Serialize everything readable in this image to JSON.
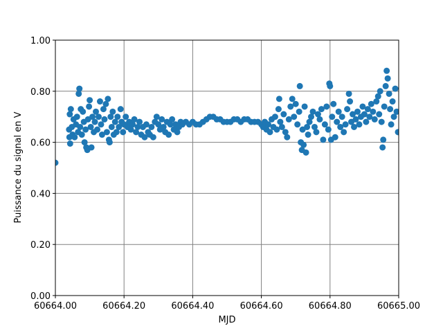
{
  "chart_data": {
    "type": "scatter",
    "x_label": "MJD",
    "y_label": "Puissance du signal en V",
    "color": "#1f77b4",
    "grid": true,
    "xlim": [
      60664.0,
      60665.0
    ],
    "xticks": [
      {
        "value": 60664.0,
        "label": "60664.00"
      },
      {
        "value": 60664.2,
        "label": "60664.20"
      },
      {
        "value": 60664.4,
        "label": "60664.40"
      },
      {
        "value": 60664.6,
        "label": "60664.60"
      },
      {
        "value": 60664.8,
        "label": "60664.80"
      },
      {
        "value": 60665.0,
        "label": "60665.00"
      }
    ],
    "ylim": [
      0,
      1
    ],
    "yticks": [
      {
        "value": 0,
        "label": "0.00"
      },
      {
        "value": 0.2,
        "label": "0.20"
      },
      {
        "value": 0.4,
        "label": "0.40"
      },
      {
        "value": 0.6,
        "label": "0.60"
      },
      {
        "value": 0.8,
        "label": "0.80"
      },
      {
        "value": 1,
        "label": "1.00"
      }
    ],
    "x": [
      60664.0,
      60664.04,
      60664.041,
      60664.042,
      60664.043,
      60664.045,
      60664.048,
      60664.05,
      60664.053,
      60664.056,
      60664.06,
      60664.063,
      60664.066,
      60664.068,
      60664.07,
      60664.072,
      60664.074,
      60664.077,
      60664.08,
      60664.083,
      60664.085,
      60664.088,
      60664.09,
      60664.093,
      60664.095,
      60664.098,
      60664.1,
      60664.103,
      60664.105,
      60664.108,
      60664.112,
      60664.115,
      60664.118,
      60664.122,
      60664.126,
      60664.13,
      60664.133,
      60664.136,
      60664.14,
      60664.143,
      60664.147,
      60664.15,
      60664.153,
      60664.156,
      60664.158,
      60664.161,
      60664.164,
      60664.167,
      60664.17,
      60664.174,
      60664.178,
      60664.181,
      60664.185,
      60664.19,
      60664.193,
      60664.197,
      60664.2,
      60664.205,
      60664.21,
      60664.215,
      60664.22,
      60664.225,
      60664.23,
      60664.235,
      60664.24,
      60664.245,
      60664.25,
      60664.255,
      60664.26,
      60664.265,
      60664.27,
      60664.275,
      60664.28,
      60664.285,
      60664.29,
      60664.295,
      60664.3,
      60664.305,
      60664.31,
      60664.315,
      60664.32,
      60664.325,
      60664.33,
      60664.335,
      60664.34,
      60664.345,
      60664.35,
      60664.355,
      60664.36,
      60664.365,
      60664.37,
      60664.38,
      60664.39,
      60664.4,
      60664.41,
      60664.42,
      60664.43,
      60664.44,
      60664.45,
      60664.46,
      60664.47,
      60664.48,
      60664.49,
      60664.5,
      60664.51,
      60664.52,
      60664.53,
      60664.54,
      60664.55,
      60664.56,
      60664.57,
      60664.58,
      60664.59,
      60664.6,
      60664.605,
      60664.61,
      60664.615,
      60664.62,
      60664.625,
      60664.63,
      60664.635,
      60664.64,
      60664.645,
      60664.65,
      60664.652,
      60664.655,
      60664.66,
      60664.665,
      60664.67,
      60664.675,
      60664.68,
      60664.685,
      60664.69,
      60664.695,
      60664.7,
      60664.705,
      60664.71,
      60664.712,
      60664.715,
      60664.718,
      60664.72,
      60664.723,
      60664.726,
      60664.73,
      60664.733,
      60664.736,
      60664.74,
      60664.745,
      60664.75,
      60664.755,
      60664.76,
      60664.765,
      60664.77,
      60664.775,
      60664.78,
      60664.785,
      60664.79,
      60664.795,
      60664.798,
      60664.8,
      60664.803,
      60664.806,
      60664.81,
      60664.815,
      60664.82,
      60664.825,
      60664.83,
      60664.835,
      60664.84,
      60664.845,
      60664.85,
      60664.855,
      60664.858,
      60664.862,
      60664.866,
      60664.87,
      60664.875,
      60664.88,
      60664.885,
      60664.89,
      60664.895,
      60664.9,
      60664.905,
      60664.91,
      60664.915,
      60664.92,
      60664.925,
      60664.93,
      60664.935,
      60664.94,
      60664.943,
      60664.946,
      60664.95,
      60664.953,
      60664.955,
      60664.958,
      60664.962,
      60664.965,
      60664.968,
      60664.972,
      60664.975,
      60664.978,
      60664.982,
      60664.986,
      60664.99,
      60664.994,
      60664.998
    ],
    "values": [
      0.52,
      0.65,
      0.62,
      0.71,
      0.595,
      0.73,
      0.66,
      0.63,
      0.69,
      0.62,
      0.67,
      0.7,
      0.64,
      0.79,
      0.81,
      0.66,
      0.73,
      0.63,
      0.72,
      0.68,
      0.6,
      0.65,
      0.58,
      0.57,
      0.69,
      0.74,
      0.765,
      0.66,
      0.58,
      0.7,
      0.64,
      0.68,
      0.72,
      0.65,
      0.7,
      0.76,
      0.67,
      0.63,
      0.73,
      0.69,
      0.75,
      0.64,
      0.77,
      0.61,
      0.6,
      0.7,
      0.66,
      0.72,
      0.63,
      0.68,
      0.64,
      0.7,
      0.66,
      0.73,
      0.68,
      0.64,
      0.67,
      0.7,
      0.66,
      0.68,
      0.65,
      0.67,
      0.69,
      0.64,
      0.66,
      0.68,
      0.63,
      0.66,
      0.62,
      0.67,
      0.64,
      0.63,
      0.66,
      0.62,
      0.68,
      0.7,
      0.67,
      0.65,
      0.69,
      0.66,
      0.64,
      0.68,
      0.63,
      0.67,
      0.69,
      0.65,
      0.67,
      0.64,
      0.66,
      0.68,
      0.67,
      0.68,
      0.67,
      0.68,
      0.67,
      0.67,
      0.68,
      0.69,
      0.7,
      0.7,
      0.69,
      0.69,
      0.68,
      0.68,
      0.68,
      0.69,
      0.69,
      0.68,
      0.69,
      0.69,
      0.68,
      0.68,
      0.68,
      0.67,
      0.66,
      0.68,
      0.65,
      0.67,
      0.64,
      0.69,
      0.66,
      0.7,
      0.65,
      0.73,
      0.77,
      0.68,
      0.66,
      0.71,
      0.64,
      0.62,
      0.69,
      0.74,
      0.77,
      0.7,
      0.75,
      0.67,
      0.72,
      0.82,
      0.6,
      0.57,
      0.65,
      0.59,
      0.74,
      0.56,
      0.66,
      0.63,
      0.68,
      0.7,
      0.72,
      0.66,
      0.64,
      0.71,
      0.69,
      0.73,
      0.61,
      0.67,
      0.74,
      0.65,
      0.83,
      0.82,
      0.61,
      0.7,
      0.75,
      0.62,
      0.68,
      0.72,
      0.66,
      0.7,
      0.64,
      0.67,
      0.73,
      0.79,
      0.76,
      0.68,
      0.71,
      0.66,
      0.69,
      0.72,
      0.67,
      0.7,
      0.74,
      0.71,
      0.68,
      0.73,
      0.7,
      0.75,
      0.72,
      0.69,
      0.76,
      0.78,
      0.71,
      0.8,
      0.68,
      0.58,
      0.61,
      0.74,
      0.82,
      0.88,
      0.85,
      0.79,
      0.73,
      0.67,
      0.76,
      0.7,
      0.81,
      0.72,
      0.64
    ]
  }
}
